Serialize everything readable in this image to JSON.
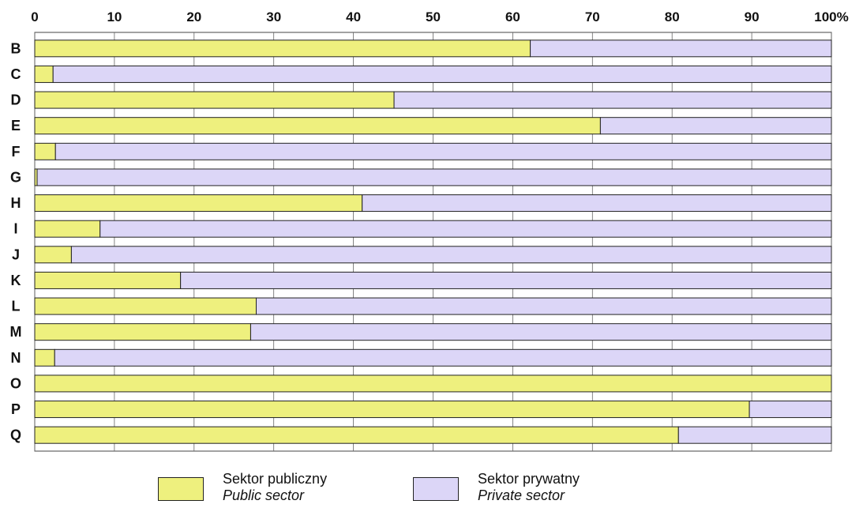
{
  "chart_data": {
    "type": "bar",
    "orientation": "horizontal",
    "stacked": true,
    "percent_stacked": true,
    "categories": [
      "B",
      "C",
      "D",
      "E",
      "F",
      "G",
      "H",
      "I",
      "J",
      "K",
      "L",
      "M",
      "N",
      "O",
      "P",
      "Q"
    ],
    "series": [
      {
        "name": "Sektor publiczny",
        "name_en": "Public sector",
        "color": "#eef07e",
        "values": [
          62.2,
          2.3,
          45.1,
          71.0,
          2.6,
          0.3,
          41.1,
          8.2,
          4.6,
          18.3,
          27.8,
          27.1,
          2.5,
          100,
          89.7,
          80.8
        ]
      },
      {
        "name": "Sektor prywatny",
        "name_en": "Private sector",
        "color": "#dcd6f7",
        "values": [
          37.8,
          97.7,
          54.9,
          29.0,
          97.4,
          99.7,
          58.9,
          91.8,
          95.4,
          81.7,
          72.2,
          72.9,
          97.5,
          0,
          10.3,
          19.2
        ]
      }
    ],
    "x_ticks": [
      "0",
      "10",
      "20",
      "30",
      "40",
      "50",
      "60",
      "70",
      "80",
      "90",
      "100%"
    ],
    "xlim": [
      0,
      100
    ],
    "xaxis_position": "top",
    "grid": true,
    "legend_position": "bottom-center"
  }
}
